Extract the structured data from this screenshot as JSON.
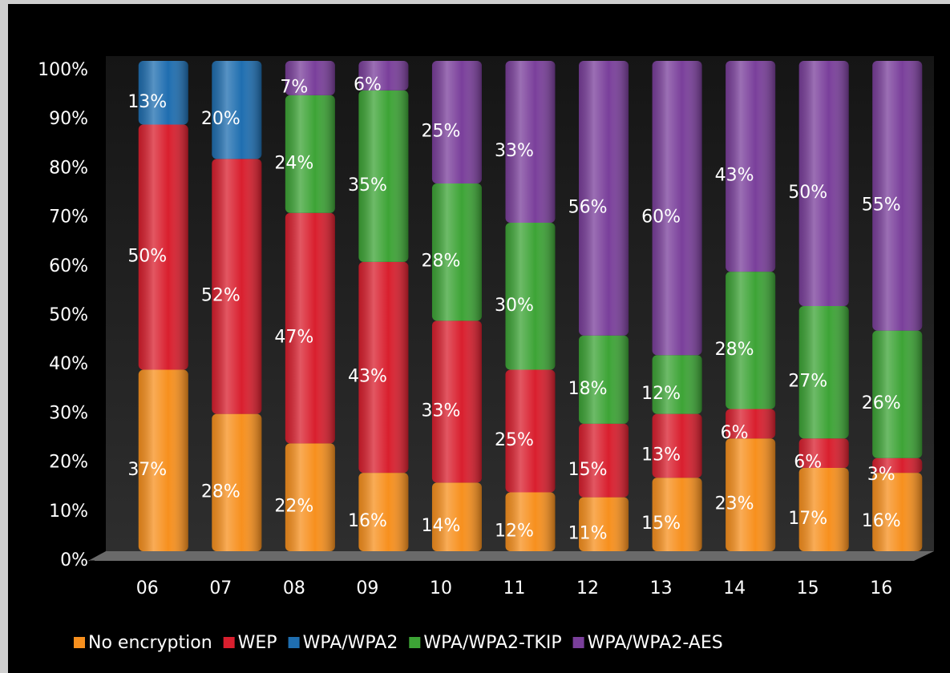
{
  "chart_data": {
    "type": "stacked_bar",
    "categories": [
      "06",
      "07",
      "08",
      "09",
      "10",
      "11",
      "12",
      "13",
      "14",
      "15",
      "16"
    ],
    "series": [
      {
        "name": "No encryption",
        "color": "#f7901e",
        "values": [
          37,
          28,
          22,
          16,
          14,
          12,
          11,
          15,
          23,
          17,
          16
        ],
        "value_labels": [
          "37%",
          "28%",
          "22%",
          "16%",
          "14%",
          "12%",
          "11%",
          "15%",
          "23%",
          "17%",
          "16%"
        ]
      },
      {
        "name": "WEP",
        "color": "#d91f2e",
        "values": [
          50,
          52,
          47,
          43,
          33,
          25,
          15,
          13,
          6,
          6,
          3
        ],
        "value_labels": [
          "50%",
          "52%",
          "47%",
          "43%",
          "33%",
          "25%",
          "15%",
          "13%",
          "6%",
          "6%",
          "3%"
        ]
      },
      {
        "name": "WPA/WPA2",
        "color": "#1f6eb0",
        "values": [
          13,
          20,
          null,
          null,
          null,
          null,
          null,
          null,
          null,
          null,
          null
        ],
        "value_labels": [
          "13%",
          "20%",
          null,
          null,
          null,
          null,
          null,
          null,
          null,
          null,
          null
        ]
      },
      {
        "name": "WPA/WPA2-TKIP",
        "color": "#3da436",
        "values": [
          null,
          null,
          24,
          35,
          28,
          30,
          18,
          12,
          28,
          27,
          26
        ],
        "value_labels": [
          null,
          null,
          "24%",
          "35%",
          "28%",
          "30%",
          "18%",
          "12%",
          "28%",
          "27%",
          "26%"
        ]
      },
      {
        "name": "WPA/WPA2-AES",
        "color": "#7a3f9b",
        "values": [
          null,
          null,
          7,
          6,
          25,
          33,
          56,
          60,
          43,
          50,
          55
        ],
        "value_labels": [
          null,
          null,
          "7%",
          "6%",
          "25%",
          "33%",
          "56%",
          "60%",
          "43%",
          "50%",
          "55%"
        ]
      }
    ],
    "ylim": [
      0,
      100
    ],
    "yticks": [
      {
        "value": 0,
        "label": "0%"
      },
      {
        "value": 10,
        "label": "10%"
      },
      {
        "value": 20,
        "label": "20%"
      },
      {
        "value": 30,
        "label": "30%"
      },
      {
        "value": 40,
        "label": "40%"
      },
      {
        "value": 50,
        "label": "50%"
      },
      {
        "value": 60,
        "label": "60%"
      },
      {
        "value": 70,
        "label": "70%"
      },
      {
        "value": 80,
        "label": "80%"
      },
      {
        "value": 90,
        "label": "90%"
      },
      {
        "value": 100,
        "label": "100%"
      }
    ],
    "legend": "bottom"
  }
}
